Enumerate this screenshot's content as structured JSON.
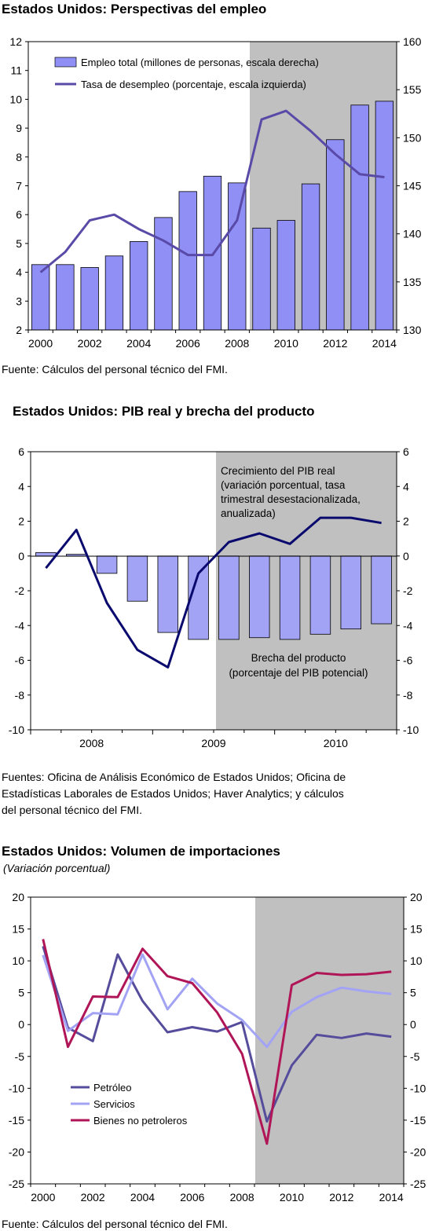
{
  "chart_data": [
    {
      "type": "bar",
      "title": "Estados Unidos: Perspectivas del empleo",
      "x": [
        2000,
        2001,
        2002,
        2003,
        2004,
        2005,
        2006,
        2007,
        2008,
        2009,
        2010,
        2011,
        2012,
        2013,
        2014
      ],
      "x_tick_labels": [
        "2000",
        "2002",
        "2004",
        "2006",
        "2008",
        "2010",
        "2012",
        "2014"
      ],
      "y_left": {
        "min": 2,
        "max": 12,
        "ticks": [
          "2",
          "3",
          "4",
          "5",
          "6",
          "7",
          "8",
          "9",
          "10",
          "11",
          "12"
        ]
      },
      "y_right": {
        "min": 130,
        "max": 160,
        "ticks": [
          "130",
          "135",
          "140",
          "145",
          "150",
          "155",
          "160"
        ]
      },
      "shaded_region": {
        "from": 2008.5,
        "to": 2014.5,
        "color": "#c0c0c0"
      },
      "series": [
        {
          "name": "Empleo total (millones de personas, escala derecha)",
          "type": "bar",
          "axis": "right",
          "color": "#8f8ff5",
          "values": [
            136.8,
            136.8,
            136.5,
            137.7,
            139.2,
            141.7,
            144.4,
            146.0,
            145.3,
            140.6,
            141.4,
            145.2,
            149.8,
            153.4,
            153.8
          ]
        },
        {
          "name": "Tasa de desempleo (porcentaje, escala izquierda)",
          "type": "line",
          "axis": "left",
          "color": "#5a4aa8",
          "values": [
            4.0,
            4.7,
            5.8,
            6.0,
            5.5,
            5.1,
            4.6,
            4.6,
            5.8,
            9.3,
            9.6,
            8.9,
            8.1,
            7.4,
            7.3
          ]
        }
      ],
      "legend_position": "top-left",
      "grid": false
    },
    {
      "type": "bar",
      "title": "Estados Unidos: PIB real y brecha del producto",
      "x_tick_labels": [
        "2008",
        "2009",
        "2010"
      ],
      "quarters": 12,
      "y_left": {
        "min": -10,
        "max": 6,
        "ticks": [
          "6",
          "4",
          "2",
          "0",
          "-2",
          "-4",
          "-6",
          "-8",
          "-10"
        ]
      },
      "y_right": {
        "min": -10,
        "max": 6,
        "ticks": [
          "6",
          "4",
          "2",
          "0",
          "-2",
          "-4",
          "-6",
          "-8",
          "-10"
        ]
      },
      "shaded_region": {
        "from_quarter": 6,
        "to_quarter": 12,
        "color": "#c0c0c0"
      },
      "series": [
        {
          "name": "Brecha del producto (porcentaje del PIB potencial)",
          "type": "bar",
          "color": "#a3a3f5",
          "values": [
            0.2,
            0.1,
            -1.0,
            -2.6,
            -4.4,
            -4.8,
            -4.8,
            -4.7,
            -4.8,
            -4.5,
            -4.2,
            -3.9
          ]
        },
        {
          "name": "Crecimiento del PIB real (variación porcentual, tasa trimestral desestacionalizada, anualizada)",
          "type": "line",
          "color": "#0a0a6e",
          "values": [
            -0.7,
            1.5,
            -2.7,
            -5.4,
            -6.4,
            -1.0,
            0.8,
            1.3,
            0.7,
            2.2,
            2.2,
            1.9
          ]
        }
      ],
      "annotations": [
        {
          "lines": [
            "Crecimiento del PIB real",
            "(variación porcentual, tasa",
            "trimestral desestacionalizada,",
            "anualizada)"
          ]
        },
        {
          "lines": [
            "Brecha del producto",
            "(porcentaje del PIB potencial)"
          ]
        }
      ],
      "grid": false
    },
    {
      "type": "line",
      "title": "Estados Unidos: Volumen de importaciones",
      "subtitle": "(Variación porcentual)",
      "x": [
        2000,
        2001,
        2002,
        2003,
        2004,
        2005,
        2006,
        2007,
        2008,
        2009,
        2010,
        2011,
        2012,
        2013,
        2014
      ],
      "x_tick_labels": [
        "2000",
        "2002",
        "2004",
        "2006",
        "2008",
        "2010",
        "2012",
        "2014"
      ],
      "y_left": {
        "min": -25,
        "max": 20,
        "ticks": [
          "20",
          "15",
          "10",
          "5",
          "0",
          "-5",
          "-10",
          "-15",
          "-20",
          "-25"
        ]
      },
      "y_right": {
        "min": -25,
        "max": 20,
        "ticks": [
          "20",
          "15",
          "10",
          "5",
          "0",
          "-5",
          "-10",
          "-15",
          "-20",
          "-25"
        ]
      },
      "shaded_region": {
        "from": 2008.5,
        "to": 2014.5,
        "color": "#c0c0c0"
      },
      "series": [
        {
          "name": "Petróleo",
          "color": "#554c9c",
          "values": [
            12.3,
            -0.5,
            -2.6,
            11.0,
            3.7,
            -1.2,
            -0.4,
            -1.1,
            0.4,
            -15.2,
            -6.4,
            -1.6,
            -2.1,
            -1.4,
            -1.9
          ]
        },
        {
          "name": "Servicios",
          "color": "#a3a3f5",
          "values": [
            10.9,
            -1.0,
            1.8,
            1.6,
            11.0,
            2.4,
            7.2,
            3.3,
            0.7,
            -3.5,
            2.0,
            4.3,
            5.8,
            5.2,
            4.8
          ]
        },
        {
          "name": "Bienes no petroleros",
          "color": "#b01657",
          "values": [
            13.4,
            -3.5,
            4.4,
            4.3,
            11.9,
            7.6,
            6.5,
            1.9,
            -4.6,
            -18.7,
            6.2,
            8.1,
            7.8,
            7.9,
            8.3
          ]
        }
      ],
      "legend_position": "bottom-left",
      "grid": false
    }
  ],
  "notes": {
    "chart1_source": "Fuente: Cálculos del personal técnico del FMI.",
    "chart2_source": [
      "Fuentes: Oficina de Análisis Económico de Estados Unidos; Oficina de",
      "Estadísticas Laborales de Estados Unidos; Haver Analytics; y cálculos",
      "del personal técnico del FMI."
    ],
    "chart3_source": "Fuente: Cálculos del personal técnico del FMI."
  }
}
